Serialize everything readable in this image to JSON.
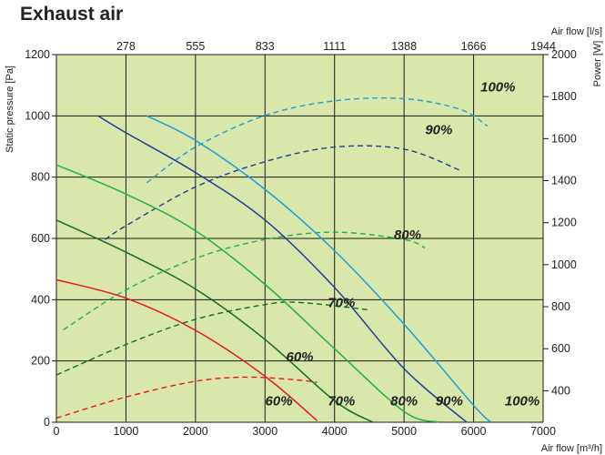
{
  "title": "Exhaust air",
  "chart_data": {
    "type": "line",
    "title": "Exhaust air",
    "xlabel": "Air flow [m³/h]",
    "x2label": "Air flow [l/s]",
    "ylabel": "Static pressure [Pa]",
    "y2label": "Power [W]",
    "xlim": [
      0,
      7000
    ],
    "ylim": [
      0,
      1200
    ],
    "y2lim": [
      250,
      2000
    ],
    "x_ticks": [
      "0",
      "1000",
      "2000",
      "3000",
      "4000",
      "5000",
      "6000",
      "7000"
    ],
    "y_ticks": [
      "0",
      "200",
      "400",
      "600",
      "800",
      "1000",
      "1200"
    ],
    "x2_ticks": [
      "278",
      "555",
      "833",
      "1111",
      "1388",
      "1666",
      "1944"
    ],
    "y2_ticks": [
      "400",
      "600",
      "800",
      "1000",
      "1200",
      "1400",
      "1600",
      "1800",
      "2000"
    ],
    "grid": true,
    "background": "#d9e7ab",
    "pressure_series": [
      {
        "name": "60%",
        "color": "#e8191d",
        "x": [
          0,
          1000,
          2000,
          3000,
          3750
        ],
        "y": [
          465,
          405,
          300,
          150,
          5
        ]
      },
      {
        "name": "70%",
        "color": "#0e6e2a",
        "x": [
          0,
          1000,
          2000,
          3000,
          4000,
          4550
        ],
        "y": [
          660,
          555,
          435,
          270,
          70,
          0
        ]
      },
      {
        "name": "80%",
        "color": "#21b24b",
        "x": [
          0,
          1000,
          2000,
          3000,
          4000,
          5000,
          5500
        ],
        "y": [
          840,
          745,
          625,
          450,
          240,
          35,
          0
        ]
      },
      {
        "name": "90%",
        "color": "#1f3e99",
        "x": [
          600,
          1000,
          2000,
          3000,
          4000,
          5000,
          5900
        ],
        "y": [
          1000,
          945,
          815,
          660,
          440,
          175,
          0
        ]
      },
      {
        "name": "100%",
        "color": "#1ba0db",
        "x": [
          1300,
          2000,
          3000,
          4000,
          5000,
          6000,
          6250
        ],
        "y": [
          1000,
          920,
          760,
          560,
          320,
          55,
          0
        ]
      }
    ],
    "power_series": [
      {
        "name": "60%",
        "color": "#e8191d",
        "x": [
          0,
          1000,
          2000,
          2750,
          3500,
          3750
        ],
        "y": [
          270,
          370,
          445,
          465,
          450,
          440
        ]
      },
      {
        "name": "70%",
        "color": "#0e6e2a",
        "x": [
          0,
          1000,
          2000,
          3000,
          3500,
          4500
        ],
        "y": [
          475,
          620,
          740,
          810,
          820,
          785
        ]
      },
      {
        "name": "80%",
        "color": "#21b24b",
        "x": [
          100,
          1000,
          2000,
          3000,
          4000,
          5000,
          5300
        ],
        "y": [
          690,
          880,
          1030,
          1120,
          1155,
          1120,
          1080
        ]
      },
      {
        "name": "90%",
        "color": "#1f3e99",
        "x": [
          700,
          1000,
          2000,
          3000,
          4000,
          5000,
          5800
        ],
        "y": [
          1120,
          1185,
          1370,
          1490,
          1560,
          1550,
          1450
        ]
      },
      {
        "name": "100%",
        "color": "#1ba0db",
        "x": [
          1300,
          2000,
          3000,
          4000,
          5000,
          5800,
          6200
        ],
        "y": [
          1390,
          1560,
          1710,
          1780,
          1790,
          1740,
          1660
        ]
      }
    ],
    "annotations": [
      {
        "text": "100%",
        "x": 6350,
        "y": 1825,
        "axis": "power"
      },
      {
        "text": "90%",
        "x": 5500,
        "y": 1620,
        "axis": "power"
      },
      {
        "text": "80%",
        "x": 5050,
        "y": 1120,
        "axis": "power"
      },
      {
        "text": "70%",
        "x": 4100,
        "y": 797,
        "axis": "power"
      },
      {
        "text": "60%",
        "x": 3500,
        "y": 540,
        "axis": "power"
      },
      {
        "text": "60%",
        "x": 3200,
        "y": 55,
        "axis": "pressure"
      },
      {
        "text": "70%",
        "x": 4100,
        "y": 55,
        "axis": "pressure"
      },
      {
        "text": "80%",
        "x": 5000,
        "y": 55,
        "axis": "pressure"
      },
      {
        "text": "90%",
        "x": 5650,
        "y": 55,
        "axis": "pressure"
      },
      {
        "text": "100%",
        "x": 6700,
        "y": 55,
        "axis": "pressure"
      }
    ]
  }
}
